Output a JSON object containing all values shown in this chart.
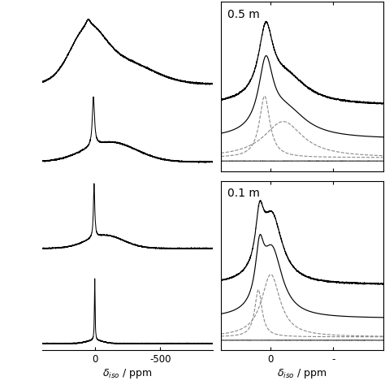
{
  "background": "#ffffff",
  "left": {
    "xlim": [
      400,
      -900
    ],
    "xticks": [
      0,
      -500
    ],
    "xlabel": "$\\delta_{iso}$ / ppm",
    "offsets": [
      3.0,
      2.1,
      1.1,
      0.0
    ],
    "scale": 0.75
  },
  "right_top": {
    "label": "0.5 m",
    "xlim": [
      80,
      -180
    ],
    "xtick_positions": [
      0,
      -100
    ],
    "xtick_labels": [
      "0",
      "-"
    ]
  },
  "right_bottom": {
    "label": "0.1 m",
    "xlim": [
      80,
      -180
    ],
    "xtick_positions": [
      0,
      -100
    ],
    "xtick_labels": [
      "0",
      "-"
    ],
    "xlabel": "$\\delta_{iso}$ / ppm"
  }
}
